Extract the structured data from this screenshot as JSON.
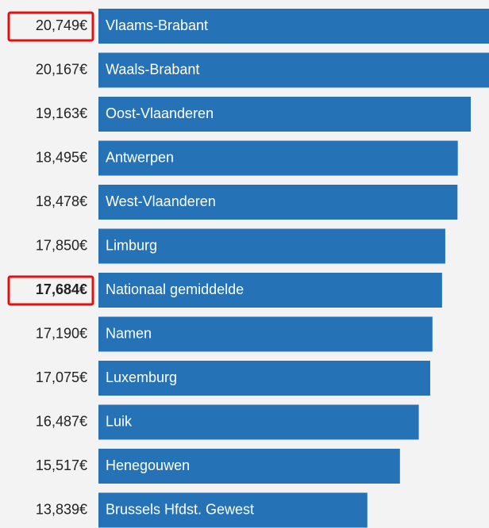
{
  "chart_data": {
    "type": "bar",
    "orientation": "horizontal",
    "categories": [
      "Vlaams-Brabant",
      "Waals-Brabant",
      "Oost-Vlaanderen",
      "Antwerpen",
      "West-Vlaanderen",
      "Limburg",
      "Nationaal gemiddelde",
      "Namen",
      "Luxemburg",
      "Luik",
      "Henegouwen",
      "Brussels Hfdst. Gewest"
    ],
    "values": [
      20749,
      20167,
      19163,
      18495,
      18478,
      17850,
      17684,
      17190,
      17075,
      16487,
      15517,
      13839
    ],
    "value_labels": [
      "20,749€",
      "20,167€",
      "19,163€",
      "18,495€",
      "18,478€",
      "17,850€",
      "17,684€",
      "17,190€",
      "17,075€",
      "16,487€",
      "15,517€",
      "13,839€"
    ],
    "color": "#2573b6",
    "xlim": [
      0,
      20100
    ],
    "highlight_boxes": [
      0,
      6
    ],
    "bold": [
      6
    ]
  }
}
